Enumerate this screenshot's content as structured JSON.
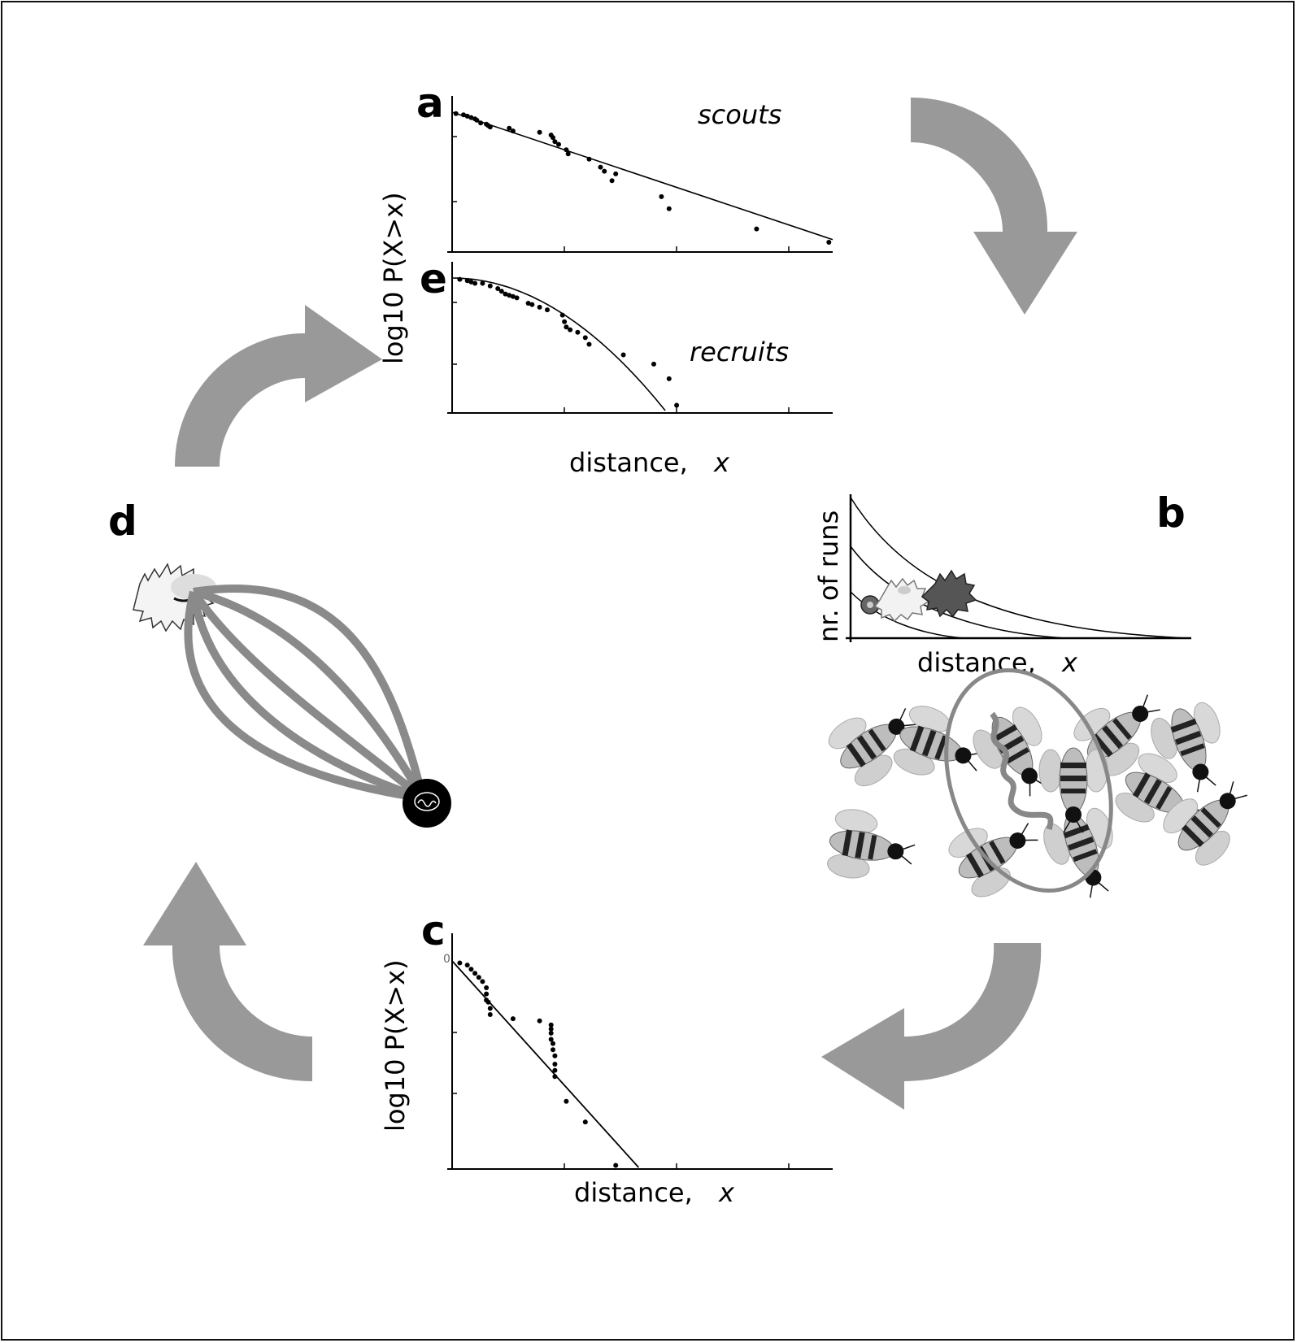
{
  "panels": {
    "a": {
      "letter": "a",
      "series_label": "scouts"
    },
    "e": {
      "letter": "e",
      "series_label": "recruits"
    },
    "b": {
      "letter": "b",
      "ylabel": "nr. of runs",
      "xlabel_word": "distance,",
      "xlabel_var": "x"
    },
    "c": {
      "letter": "c",
      "ylabel": "log10 P(X>x)",
      "xlabel_word": "distance,",
      "xlabel_var": "x",
      "y_tick_zero": "0"
    },
    "d": {
      "letter": "d"
    }
  },
  "shared": {
    "ylabel_ae": "log10 P(X>x)",
    "xlabel_word": "distance,",
    "xlabel_var": "x"
  },
  "colors": {
    "arrow": "#999999",
    "trail": "#8a8a8a",
    "ink": "#000000"
  },
  "chart_data": [
    {
      "id": "a",
      "type": "scatter",
      "title": "scouts",
      "ylabel": "log10 P(X>x)",
      "xlabel": "distance, x",
      "xlim": [
        0,
        1
      ],
      "ylim": [
        -1,
        0
      ],
      "x": [
        0.01,
        0.03,
        0.04,
        0.05,
        0.06,
        0.065,
        0.075,
        0.09,
        0.095,
        0.1,
        0.15,
        0.16,
        0.23,
        0.26,
        0.265,
        0.27,
        0.28,
        0.3,
        0.305,
        0.36,
        0.39,
        0.4,
        0.42,
        0.43,
        0.55,
        0.57,
        0.8,
        0.99
      ],
      "y": [
        -0.01,
        -0.02,
        -0.03,
        -0.04,
        -0.05,
        -0.06,
        -0.08,
        -0.09,
        -0.1,
        -0.11,
        -0.12,
        -0.14,
        -0.15,
        -0.17,
        -0.19,
        -0.22,
        -0.24,
        -0.28,
        -0.31,
        -0.35,
        -0.41,
        -0.44,
        -0.51,
        -0.46,
        -0.63,
        -0.72,
        -0.87,
        -0.97
      ],
      "fit": {
        "kind": "linear",
        "y0": 0,
        "y1": -0.95
      }
    },
    {
      "id": "e",
      "type": "scatter",
      "title": "recruits",
      "ylabel": "log10 P(X>x)",
      "xlabel": "distance, x",
      "xlim": [
        0,
        1
      ],
      "ylim": [
        -1,
        0
      ],
      "x": [
        0.02,
        0.04,
        0.05,
        0.06,
        0.08,
        0.1,
        0.12,
        0.13,
        0.14,
        0.15,
        0.16,
        0.17,
        0.2,
        0.21,
        0.23,
        0.25,
        0.29,
        0.295,
        0.3,
        0.31,
        0.33,
        0.35,
        0.36,
        0.45,
        0.53,
        0.57,
        0.59
      ],
      "y": [
        -0.01,
        -0.02,
        -0.03,
        -0.04,
        -0.04,
        -0.06,
        -0.08,
        -0.1,
        -0.12,
        -0.13,
        -0.14,
        -0.15,
        -0.19,
        -0.2,
        -0.22,
        -0.24,
        -0.28,
        -0.33,
        -0.37,
        -0.39,
        -0.41,
        -0.45,
        -0.5,
        -0.58,
        -0.65,
        -0.76,
        -0.96
      ],
      "fit": {
        "kind": "quadratic",
        "x_end": 0.56
      }
    },
    {
      "id": "c",
      "type": "scatter",
      "ylabel": "log10 P(X>x)",
      "xlabel": "distance, x",
      "xlim": [
        0,
        1
      ],
      "ylim": [
        -1,
        0
      ],
      "x": [
        0.02,
        0.04,
        0.05,
        0.06,
        0.07,
        0.08,
        0.09,
        0.09,
        0.09,
        0.095,
        0.1,
        0.1,
        0.16,
        0.23,
        0.26,
        0.26,
        0.26,
        0.26,
        0.265,
        0.265,
        0.27,
        0.27,
        0.27,
        0.27,
        0.3,
        0.35,
        0.43
      ],
      "y": [
        -0.01,
        -0.02,
        -0.04,
        -0.06,
        -0.08,
        -0.1,
        -0.13,
        -0.16,
        -0.19,
        -0.2,
        -0.23,
        -0.26,
        -0.28,
        -0.29,
        -0.31,
        -0.33,
        -0.35,
        -0.38,
        -0.4,
        -0.43,
        -0.46,
        -0.5,
        -0.53,
        -0.56,
        -0.68,
        -0.78,
        -0.99
      ],
      "fit": {
        "kind": "linear",
        "y0": 0,
        "x_at_bottom": 0.49
      }
    },
    {
      "id": "b",
      "type": "line",
      "ylabel": "nr. of runs",
      "xlabel": "distance, x",
      "series_count": 3
    }
  ]
}
